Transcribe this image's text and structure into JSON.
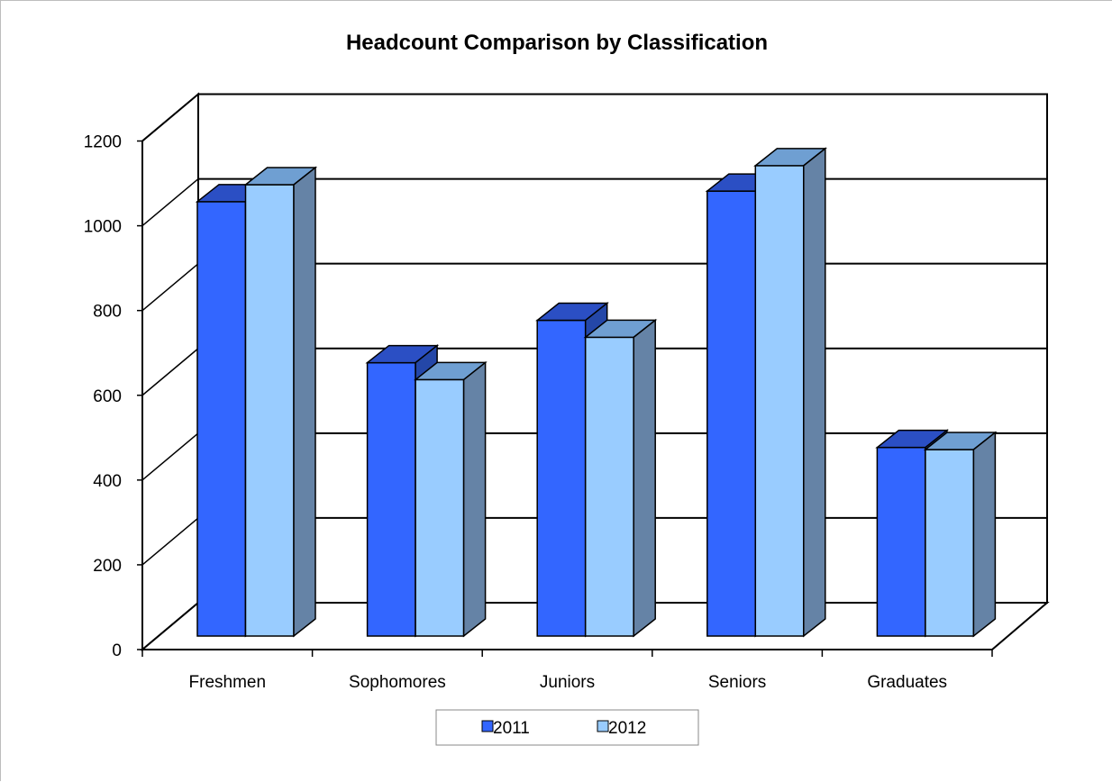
{
  "chart_data": {
    "type": "bar",
    "title": "Headcount Comparison by Classification",
    "xlabel": "",
    "ylabel": "",
    "categories": [
      "Freshmen",
      "Sophomores",
      "Juniors",
      "Seniors",
      "Graduates"
    ],
    "series": [
      {
        "name": "2011",
        "values": [
          1025,
          645,
          745,
          1050,
          445
        ],
        "color": "#3366ff",
        "top_color": "#2b4fc4",
        "side_color": "#2447a8"
      },
      {
        "name": "2012",
        "values": [
          1065,
          605,
          705,
          1110,
          440
        ],
        "color": "#99ccff",
        "top_color": "#6f9fd2",
        "side_color": "#6583a6"
      }
    ],
    "y_ticks": [
      "0",
      "200",
      "400",
      "600",
      "800",
      "1000",
      "1200"
    ],
    "ylim": [
      0,
      1200
    ],
    "grid": true,
    "style": "3d-clustered-column",
    "legend_position": "bottom"
  }
}
